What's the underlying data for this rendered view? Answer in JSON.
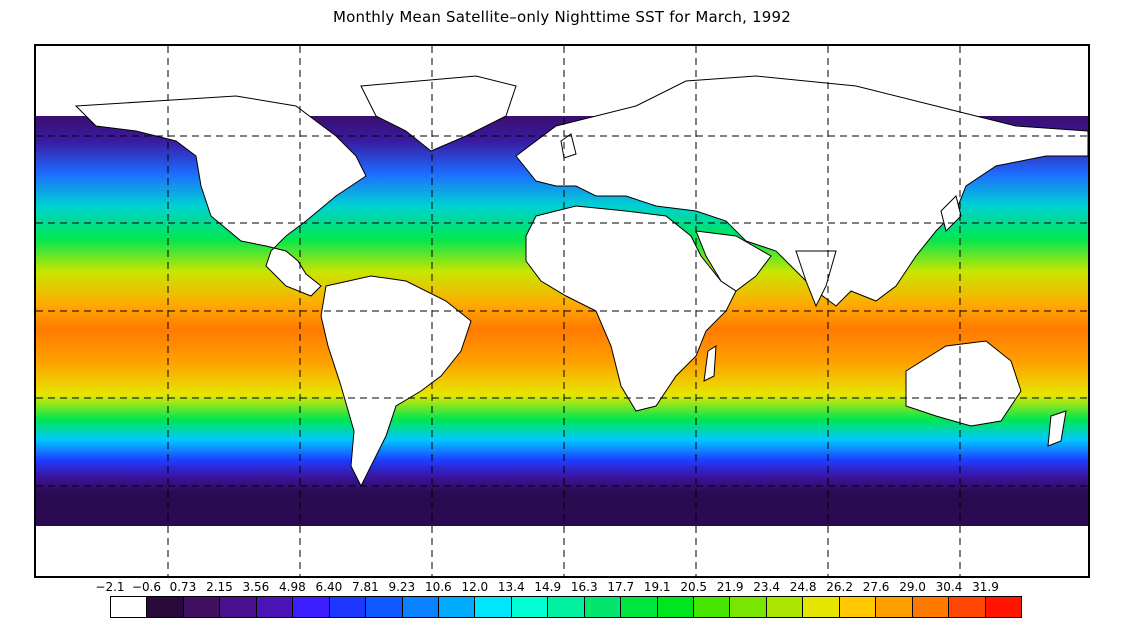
{
  "title": "Monthly Mean Satellite–only Nighttime SST for March, 1992",
  "map": {
    "projection": "equirectangular",
    "grid": "dashed",
    "grid_longitudes": [
      -120,
      -60,
      0,
      60,
      120
    ],
    "grid_latitudes": [
      60,
      30,
      0,
      -30,
      -60
    ],
    "colors": {
      "ocean_polar": "#3a0a6e",
      "ocean_cold": "#2a1fff",
      "ocean_mid": "#00d050",
      "ocean_warm": "#ffc800",
      "ocean_tropical": "#ff6a00",
      "land": "#ffffff",
      "coastline": "#000000"
    }
  },
  "legend": {
    "ticks": [
      "−2.1",
      "−0.6",
      "0.73",
      "2.15",
      "3.56",
      "4.98",
      "6.40",
      "7.81",
      "9.23",
      "10.6",
      "12.0",
      "13.4",
      "14.9",
      "16.3",
      "17.7",
      "19.1",
      "20.5",
      "21.9",
      "23.4",
      "24.8",
      "26.2",
      "27.6",
      "29.0",
      "30.4",
      "31.9"
    ],
    "colors": [
      "#ffffff",
      "#2a0a3a",
      "#3f0f60",
      "#4a0f8c",
      "#4b14b4",
      "#3c1eff",
      "#1e37ff",
      "#0f5aff",
      "#0a82ff",
      "#00aaff",
      "#00e6ff",
      "#00ffd2",
      "#00f0a0",
      "#00e66e",
      "#00e63c",
      "#00e61e",
      "#46e600",
      "#78e600",
      "#aae600",
      "#e6e600",
      "#ffc800",
      "#ffa000",
      "#ff7800",
      "#ff4600",
      "#ff1400"
    ]
  }
}
